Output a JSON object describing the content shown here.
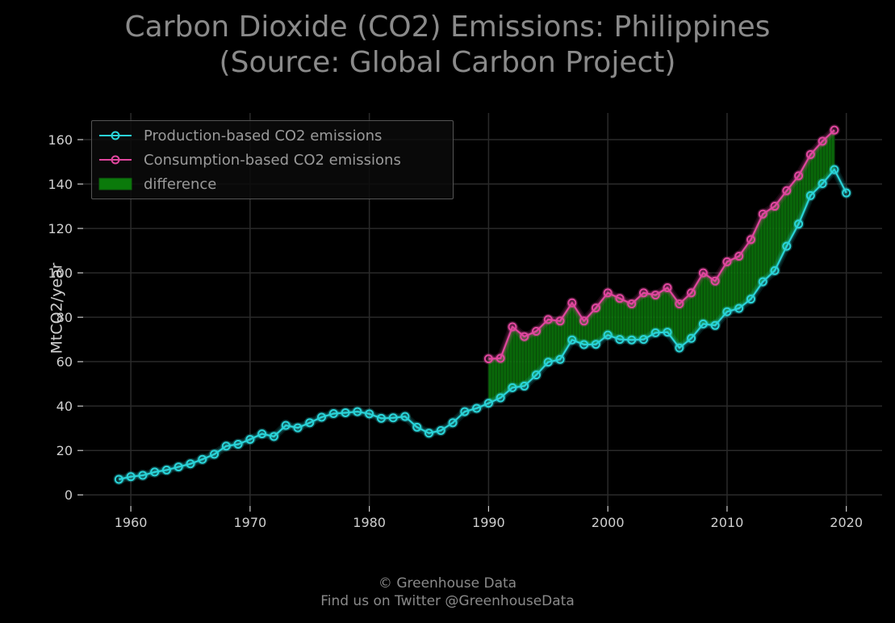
{
  "chart_data": {
    "type": "line",
    "title": "Carbon Dioxide (CO2) Emissions: Philippines",
    "subtitle": "(Source: Global Carbon Project)",
    "ylabel": "MtCO2/year",
    "xlabel": "",
    "xlim": [
      1956,
      2023
    ],
    "ylim": [
      -5,
      172
    ],
    "xticks": [
      1960,
      1970,
      1980,
      1990,
      2000,
      2010,
      2020
    ],
    "yticks": [
      0,
      20,
      40,
      60,
      80,
      100,
      120,
      140,
      160
    ],
    "grid": true,
    "legend_position": "top-left",
    "series": [
      {
        "name": "Production-based CO2 emissions",
        "color": "#2ad4d9",
        "x": [
          1959,
          1960,
          1961,
          1962,
          1963,
          1964,
          1965,
          1966,
          1967,
          1968,
          1969,
          1970,
          1971,
          1972,
          1973,
          1974,
          1975,
          1976,
          1977,
          1978,
          1979,
          1980,
          1981,
          1982,
          1983,
          1984,
          1985,
          1986,
          1987,
          1988,
          1989,
          1990,
          1991,
          1992,
          1993,
          1994,
          1995,
          1996,
          1997,
          1998,
          1999,
          2000,
          2001,
          2002,
          2003,
          2004,
          2005,
          2006,
          2007,
          2008,
          2009,
          2010,
          2011,
          2012,
          2013,
          2014,
          2015,
          2016,
          2017,
          2018,
          2019,
          2020
        ],
        "values": [
          7.0,
          8.2,
          8.8,
          10.3,
          11.2,
          12.6,
          14.0,
          16.0,
          18.3,
          22.0,
          22.8,
          25.0,
          27.5,
          26.3,
          31.3,
          30.2,
          32.5,
          35.0,
          36.6,
          37.0,
          37.5,
          36.5,
          34.5,
          34.7,
          35.3,
          30.5,
          27.8,
          29.0,
          32.5,
          37.5,
          39.0,
          41.3,
          43.7,
          48.3,
          49.0,
          54.0,
          59.8,
          61.0,
          69.8,
          67.7,
          67.8,
          72.0,
          70.0,
          69.8,
          70.0,
          73.0,
          73.3,
          66.2,
          70.5,
          77.0,
          76.3,
          82.5,
          84.0,
          88.2,
          96.0,
          101.0,
          112.0,
          122.0,
          134.8,
          140.2,
          146.5,
          136.0
        ]
      },
      {
        "name": "Consumption-based CO2 emissions",
        "color": "#e0479e",
        "x": [
          1990,
          1991,
          1992,
          1993,
          1994,
          1995,
          1996,
          1997,
          1998,
          1999,
          2000,
          2001,
          2002,
          2003,
          2004,
          2005,
          2006,
          2007,
          2008,
          2009,
          2010,
          2011,
          2012,
          2013,
          2014,
          2015,
          2016,
          2017,
          2018,
          2019
        ],
        "values": [
          61.3,
          61.5,
          75.7,
          71.3,
          73.7,
          79.0,
          78.3,
          86.5,
          78.3,
          84.2,
          91.0,
          88.5,
          86.0,
          91.0,
          90.0,
          93.3,
          86.0,
          91.0,
          100.0,
          96.3,
          105.0,
          107.5,
          115.0,
          126.5,
          130.0,
          137.0,
          143.7,
          153.3,
          159.3,
          164.3
        ]
      }
    ],
    "fill_between": {
      "name": "difference",
      "color": "#0b7a0b",
      "x_range": [
        1990,
        2019
      ]
    }
  },
  "credit": {
    "line1": "© Greenhouse Data",
    "line2": "Find us on Twitter @GreenhouseData"
  }
}
